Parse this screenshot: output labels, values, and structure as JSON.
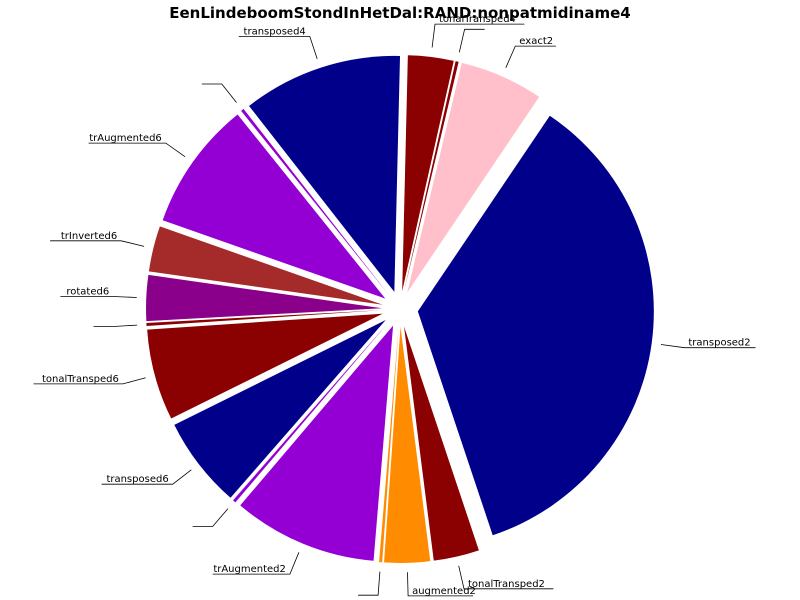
{
  "chart_data": {
    "type": "pie",
    "title": "EenLindeboomStondInHetDal:RAND:nonpatmidiname4",
    "slices": [
      {
        "label": "transposed2",
        "value": 34.0,
        "color": "#00008b"
      },
      {
        "label": "tonalTransped2",
        "value": 3.0,
        "color": "#8b0000"
      },
      {
        "label": "augmented2",
        "value": 3.0,
        "color": "#ff8c00"
      },
      {
        "label": "",
        "value": 0.2,
        "color": "#ff8c00"
      },
      {
        "label": "trAugmented2",
        "value": 9.5,
        "color": "#9400d3"
      },
      {
        "label": "",
        "value": 0.2,
        "color": "#9400d3"
      },
      {
        "label": "transposed6",
        "value": 6.0,
        "color": "#00008b"
      },
      {
        "label": "tonalTransped6",
        "value": 6.0,
        "color": "#8b0000"
      },
      {
        "label": "",
        "value": 0.2,
        "color": "#8b0000"
      },
      {
        "label": "rotated6",
        "value": 3.0,
        "color": "#8b008b"
      },
      {
        "label": "trInverted6",
        "value": 3.0,
        "color": "#a52a2a"
      },
      {
        "label": "trAugmented6",
        "value": 8.5,
        "color": "#9400d3"
      },
      {
        "label": "",
        "value": 0.2,
        "color": "#9400d3"
      },
      {
        "label": "transposed4",
        "value": 10.5,
        "color": "#00008b"
      },
      {
        "label": "tonalTransped4",
        "value": 3.0,
        "color": "#8b0000"
      },
      {
        "label": "",
        "value": 0.2,
        "color": "#8b0000"
      },
      {
        "label": "exact2",
        "value": 5.5,
        "color": "#ffc0cb"
      }
    ],
    "start_angle_deg": 56,
    "direction": "clockwise",
    "exploded": true,
    "legend": "none"
  }
}
